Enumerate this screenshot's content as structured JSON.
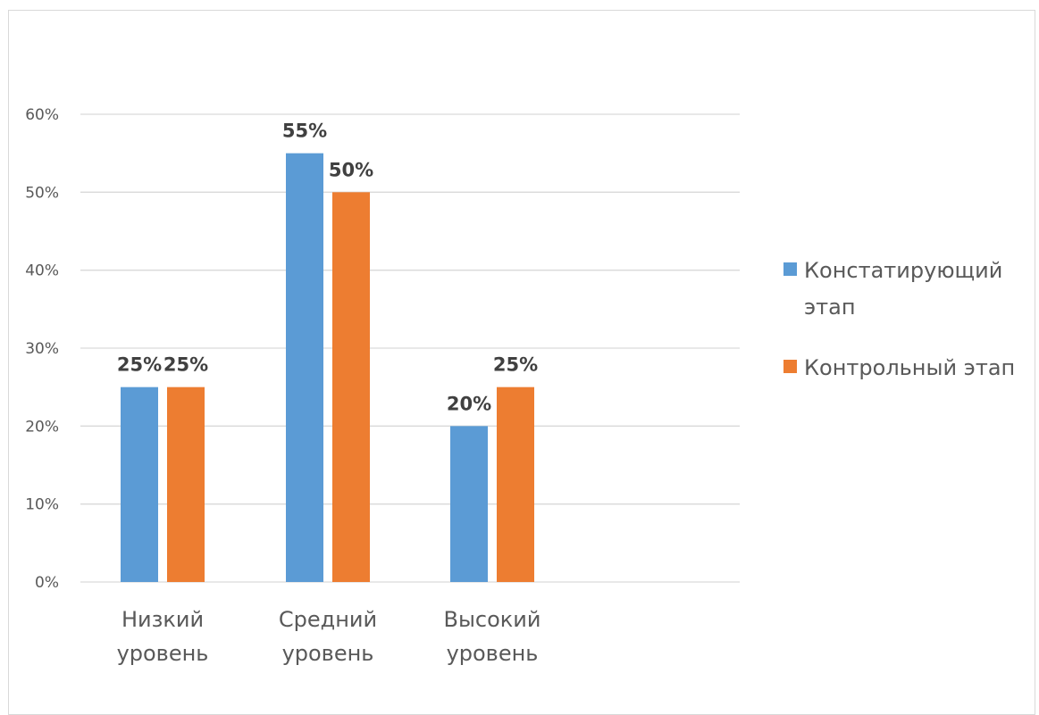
{
  "chart_data": {
    "type": "bar",
    "title": "",
    "xlabel": "",
    "ylabel": "",
    "categories": [
      [
        "Низкий",
        "уровень"
      ],
      [
        "Средний",
        "уровень"
      ],
      [
        "Высокий",
        "уровень"
      ]
    ],
    "series": [
      {
        "name": "Констатирующий этап",
        "legend_lines": [
          "Констатирующий",
          "этап"
        ],
        "color": "#5b9bd5",
        "values": [
          25,
          55,
          20
        ],
        "labels": [
          "25%",
          "55%",
          "20%"
        ]
      },
      {
        "name": "Контрольный этап",
        "legend_lines": [
          "Контрольный этап"
        ],
        "color": "#ed7d31",
        "values": [
          25,
          50,
          25
        ],
        "labels": [
          "25%",
          "50%",
          "25%"
        ]
      }
    ],
    "ylim": [
      0,
      60
    ],
    "yticks": [
      0,
      10,
      20,
      30,
      40,
      50,
      60
    ],
    "ytick_labels": [
      "0%",
      "10%",
      "20%",
      "30%",
      "40%",
      "50%",
      "60%"
    ],
    "grid": true,
    "legend_position": "right",
    "gridline_color": "#d9d9d9"
  }
}
